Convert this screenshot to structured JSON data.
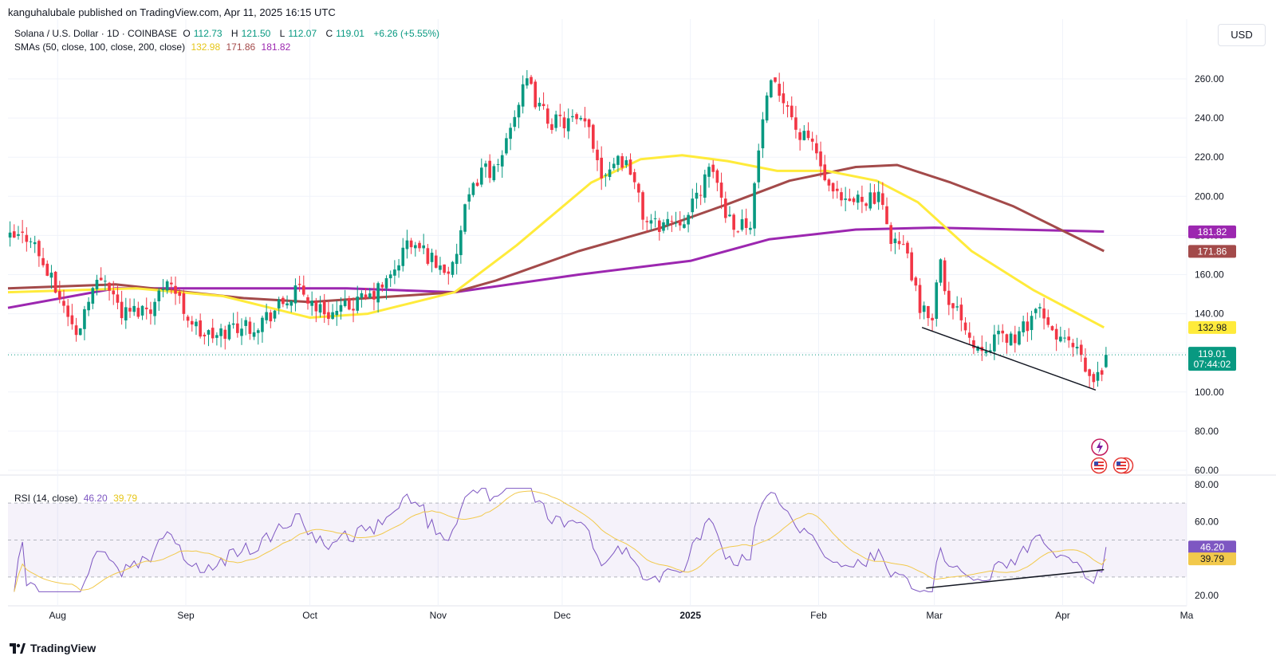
{
  "attribution": "kanguhalubale published on TradingView.com, Apr 11, 2025 16:15 UTC",
  "legend": {
    "symbol": "Solana / U.S. Dollar · 1D · COINBASE",
    "o_label": "O",
    "o": "112.73",
    "h_label": "H",
    "h": "121.50",
    "l_label": "L",
    "l": "112.07",
    "c_label": "C",
    "c": "119.01",
    "change": "+6.26 (+5.55%)",
    "sma_title": "SMAs (50, close, 100, close, 200, close)",
    "sma50": "132.98",
    "sma100": "171.86",
    "sma200": "181.82",
    "rsi_title": "RSI (14, close)",
    "rsi": "46.20",
    "rsi_ma": "39.79"
  },
  "currency": "USD",
  "footer": "TradingView",
  "colors": {
    "up": "#089981",
    "down": "#f23645",
    "sma50": "#ffeb3b",
    "sma100": "#a34a4a",
    "sma200": "#9c27b0",
    "rsi": "#7e57c2",
    "rsi_ma": "#f2c94c",
    "sma50_label": "#e6c619"
  },
  "chart_data": [
    {
      "type": "candlestick",
      "title": "Solana / U.S. Dollar · 1D · COINBASE",
      "x_ticks": [
        "Aug",
        "Sep",
        "Oct",
        "Nov",
        "Dec",
        "2025",
        "Feb",
        "Mar",
        "Apr",
        "Ma"
      ],
      "y_ticks": [
        "260.00",
        "240.00",
        "220.00",
        "200.00",
        "180.00",
        "160.00",
        "140.00",
        "120.00",
        "100.00",
        "80.00",
        "60.00"
      ],
      "ylim": [
        58,
        280
      ],
      "last_price_label": "119.01",
      "countdown": "07:44:02",
      "price_labels": [
        {
          "name": "sma200",
          "value": "181.82"
        },
        {
          "name": "sma100",
          "value": "171.86"
        },
        {
          "name": "sma50",
          "value": "132.98"
        },
        {
          "name": "last",
          "value": "119.01"
        }
      ],
      "waypoints": [
        [
          "2024-07-20",
          178
        ],
        [
          "2024-07-25",
          180
        ],
        [
          "2024-07-28",
          165
        ],
        [
          "2024-08-03",
          140
        ],
        [
          "2024-08-05",
          128
        ],
        [
          "2024-08-08",
          150
        ],
        [
          "2024-08-12",
          160
        ],
        [
          "2024-08-16",
          140
        ],
        [
          "2024-08-20",
          142
        ],
        [
          "2024-08-24",
          145
        ],
        [
          "2024-08-27",
          160
        ],
        [
          "2024-08-31",
          142
        ],
        [
          "2024-09-04",
          130
        ],
        [
          "2024-09-08",
          128
        ],
        [
          "2024-09-12",
          134
        ],
        [
          "2024-09-17",
          134
        ],
        [
          "2024-09-21",
          140
        ],
        [
          "2024-09-28",
          152
        ],
        [
          "2024-10-03",
          142
        ],
        [
          "2024-10-07",
          140
        ],
        [
          "2024-10-11",
          145
        ],
        [
          "2024-10-15",
          148
        ],
        [
          "2024-10-20",
          158
        ],
        [
          "2024-10-24",
          176
        ],
        [
          "2024-10-28",
          172
        ],
        [
          "2024-11-01",
          164
        ],
        [
          "2024-11-04",
          162
        ],
        [
          "2024-11-07",
          192
        ],
        [
          "2024-11-11",
          215
        ],
        [
          "2024-11-15",
          212
        ],
        [
          "2024-11-18",
          238
        ],
        [
          "2024-11-22",
          258
        ],
        [
          "2024-11-25",
          245
        ],
        [
          "2024-11-28",
          238
        ],
        [
          "2024-12-03",
          238
        ],
        [
          "2024-12-07",
          235
        ],
        [
          "2024-12-10",
          212
        ],
        [
          "2024-12-14",
          220
        ],
        [
          "2024-12-17",
          215
        ],
        [
          "2024-12-20",
          190
        ],
        [
          "2024-12-23",
          185
        ],
        [
          "2024-12-27",
          188
        ],
        [
          "2024-12-31",
          190
        ],
        [
          "2025-01-03",
          205
        ],
        [
          "2025-01-06",
          214
        ],
        [
          "2025-01-09",
          192
        ],
        [
          "2025-01-12",
          185
        ],
        [
          "2025-01-15",
          188
        ],
        [
          "2025-01-18",
          240
        ],
        [
          "2025-01-20",
          255
        ],
        [
          "2025-01-23",
          252
        ],
        [
          "2025-01-27",
          230
        ],
        [
          "2025-01-30",
          228
        ],
        [
          "2025-02-03",
          202
        ],
        [
          "2025-02-07",
          195
        ],
        [
          "2025-02-11",
          200
        ],
        [
          "2025-02-15",
          198
        ],
        [
          "2025-02-18",
          180
        ],
        [
          "2025-02-22",
          170
        ],
        [
          "2025-02-25",
          140
        ],
        [
          "2025-02-28",
          140
        ],
        [
          "2025-03-02",
          170
        ],
        [
          "2025-03-04",
          142
        ],
        [
          "2025-03-07",
          140
        ],
        [
          "2025-03-10",
          124
        ],
        [
          "2025-03-13",
          125
        ],
        [
          "2025-03-17",
          128
        ],
        [
          "2025-03-21",
          128
        ],
        [
          "2025-03-25",
          143
        ],
        [
          "2025-03-28",
          132
        ],
        [
          "2025-04-01",
          126
        ],
        [
          "2025-04-04",
          120
        ],
        [
          "2025-04-07",
          106
        ],
        [
          "2025-04-09",
          107
        ],
        [
          "2025-04-10",
          113
        ],
        [
          "2025-04-11",
          119
        ]
      ],
      "sma50": [
        [
          "2024-07-20",
          151
        ],
        [
          "2024-08-20",
          153
        ],
        [
          "2024-09-10",
          149
        ],
        [
          "2024-10-01",
          138
        ],
        [
          "2024-10-15",
          140
        ],
        [
          "2024-11-05",
          151
        ],
        [
          "2024-11-20",
          175
        ],
        [
          "2024-12-08",
          207
        ],
        [
          "2024-12-20",
          219
        ],
        [
          "2024-12-30",
          221
        ],
        [
          "2025-01-10",
          218
        ],
        [
          "2025-01-22",
          213
        ],
        [
          "2025-02-03",
          213
        ],
        [
          "2025-02-15",
          208
        ],
        [
          "2025-02-25",
          197
        ],
        [
          "2025-03-10",
          172
        ],
        [
          "2025-03-25",
          152
        ],
        [
          "2025-04-11",
          133
        ]
      ],
      "sma100": [
        [
          "2024-07-20",
          153
        ],
        [
          "2024-08-15",
          155
        ],
        [
          "2024-09-15",
          148
        ],
        [
          "2024-10-01",
          146
        ],
        [
          "2024-10-15",
          148
        ],
        [
          "2024-11-05",
          151
        ],
        [
          "2024-11-15",
          157
        ],
        [
          "2024-12-05",
          172
        ],
        [
          "2024-12-25",
          184
        ],
        [
          "2025-01-10",
          196
        ],
        [
          "2025-01-25",
          208
        ],
        [
          "2025-02-10",
          215
        ],
        [
          "2025-02-20",
          216
        ],
        [
          "2025-03-05",
          207
        ],
        [
          "2025-03-20",
          195
        ],
        [
          "2025-04-11",
          172
        ]
      ],
      "sma200": [
        [
          "2024-07-20",
          143
        ],
        [
          "2024-08-15",
          153
        ],
        [
          "2024-09-15",
          153
        ],
        [
          "2024-10-10",
          153
        ],
        [
          "2024-11-05",
          151
        ],
        [
          "2024-12-05",
          160
        ],
        [
          "2025-01-01",
          167
        ],
        [
          "2025-01-20",
          178
        ],
        [
          "2025-02-10",
          183
        ],
        [
          "2025-03-01",
          184
        ],
        [
          "2025-04-11",
          182
        ]
      ],
      "trendline": [
        [
          "2025-02-26",
          133
        ],
        [
          "2025-04-09",
          101
        ]
      ]
    },
    {
      "type": "line",
      "title": "RSI (14, close)",
      "y_ticks": [
        "80.00",
        "60.00",
        "40.00",
        "20.00"
      ],
      "ylim": [
        20,
        80
      ],
      "bands": [
        70,
        50,
        30
      ],
      "last_rsi_label": "46.20",
      "last_ma_label": "39.79",
      "trendline": [
        [
          "2025-02-27",
          24
        ],
        [
          "2025-04-11",
          34
        ]
      ]
    }
  ]
}
